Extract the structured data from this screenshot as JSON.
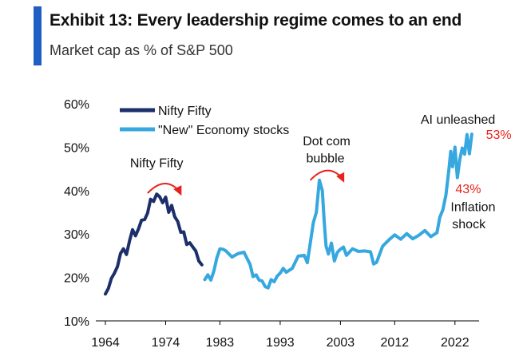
{
  "header": {
    "title": "Exhibit 13: Every leadership regime comes to an end",
    "subtitle": "Market cap as % of S&P 500"
  },
  "colors": {
    "accent": "#1f5fc4",
    "nifty": "#1c2f6b",
    "new_economy": "#36a8df",
    "highlight": "#e8221b",
    "text": "#111111"
  },
  "chart_data": {
    "type": "line",
    "title": "Exhibit 13: Every leadership regime comes to an end",
    "subtitle": "Market cap as % of S&P 500",
    "xlabel": "",
    "ylabel": "",
    "xlim": [
      1964,
      2026
    ],
    "ylim": [
      10,
      60
    ],
    "x_ticks": [
      "1964",
      "1974",
      "1983",
      "1993",
      "2003",
      "2012",
      "2022"
    ],
    "x_tick_values": [
      1964,
      1974,
      1983,
      1993,
      2003,
      2012,
      2022
    ],
    "y_ticks": [
      "10%",
      "20%",
      "30%",
      "40%",
      "50%",
      "60%"
    ],
    "y_tick_values": [
      10,
      20,
      30,
      40,
      50,
      60
    ],
    "grid": false,
    "legend_position": "top-left",
    "series": [
      {
        "name": "Nifty Fifty",
        "x": [
          1964.0,
          1964.5,
          1965.0,
          1965.5,
          1966.0,
          1966.5,
          1967.0,
          1967.5,
          1968.0,
          1968.5,
          1969.0,
          1969.5,
          1970.0,
          1970.5,
          1971.0,
          1971.5,
          1972.0,
          1972.5,
          1973.0,
          1973.5,
          1974.0,
          1974.5,
          1975.0,
          1975.5,
          1976.0,
          1976.5,
          1977.0,
          1977.5,
          1978.0,
          1978.5,
          1979.0,
          1979.5,
          1980.0
        ],
        "values": [
          16.2,
          17.5,
          19.8,
          21.0,
          22.5,
          25.5,
          26.6,
          25.3,
          28.4,
          31.0,
          29.6,
          31.2,
          33.2,
          33.3,
          34.8,
          38.0,
          37.5,
          39.2,
          38.6,
          37.2,
          38.5,
          35.0,
          36.6,
          34.0,
          32.9,
          30.4,
          30.5,
          27.6,
          28.0,
          27.0,
          26.1,
          23.8,
          22.9
        ]
      },
      {
        "name": "\"New\" Economy stocks",
        "x": [
          1980.5,
          1981.0,
          1981.5,
          1982.0,
          1982.5,
          1983.0,
          1983.5,
          1984.0,
          1985.0,
          1986.0,
          1987.0,
          1988.0,
          1988.5,
          1989.0,
          1989.5,
          1990.0,
          1990.5,
          1991.0,
          1991.5,
          1992.0,
          1992.5,
          1993.0,
          1993.5,
          1994.0,
          1995.0,
          1996.0,
          1997.0,
          1997.5,
          1998.0,
          1998.5,
          1999.0,
          1999.5,
          2000.0,
          2000.3,
          2000.6,
          2001.0,
          2001.5,
          2002.0,
          2002.5,
          2003.0,
          2003.5,
          2004.0,
          2005.0,
          2006.0,
          2007.0,
          2008.0,
          2008.5,
          2009.0,
          2010.0,
          2011.0,
          2012.0,
          2013.0,
          2014.0,
          2015.0,
          2016.0,
          2017.0,
          2018.0,
          2019.0,
          2019.5,
          2020.0,
          2020.5,
          2021.0,
          2021.3,
          2021.6,
          2022.0,
          2022.4,
          2022.8,
          2023.2,
          2023.6,
          2024.0,
          2024.4,
          2024.8
        ],
        "values": [
          19.5,
          20.6,
          19.4,
          21.5,
          24.5,
          26.6,
          26.5,
          26.1,
          24.7,
          25.5,
          25.8,
          23.0,
          20.2,
          20.6,
          19.4,
          19.2,
          17.9,
          17.6,
          19.5,
          19.0,
          20.3,
          21.0,
          22.1,
          21.2,
          22.1,
          24.9,
          25.1,
          23.4,
          27.9,
          32.6,
          35.0,
          42.4,
          40.0,
          33.0,
          27.3,
          25.4,
          27.9,
          23.8,
          25.8,
          26.5,
          27.0,
          25.1,
          26.6,
          26.0,
          26.1,
          25.9,
          23.1,
          23.5,
          27.2,
          28.6,
          29.8,
          28.8,
          30.1,
          28.9,
          29.7,
          30.8,
          29.4,
          30.3,
          33.9,
          35.6,
          39.0,
          45.0,
          49.0,
          45.5,
          50.0,
          43.0,
          47.1,
          49.8,
          48.4,
          52.9,
          48.5,
          53.0
        ]
      }
    ],
    "annotations": [
      {
        "text": "Nifty Fifty",
        "x": 1972.5,
        "y": 46.5,
        "color": "#111111"
      },
      {
        "text": "Dot com",
        "x": 2000.7,
        "y": 51.5,
        "color": "#111111"
      },
      {
        "text": "bubble",
        "x": 2000.5,
        "y": 47.6,
        "color": "#111111"
      },
      {
        "text": "AI unleashed",
        "x": 2022.5,
        "y": 56.5,
        "color": "#111111"
      },
      {
        "text": "53%",
        "x": 2028.2,
        "y": 53.0,
        "color": "#e8221b"
      },
      {
        "text": "43%",
        "x": 2024.2,
        "y": 40.5,
        "color": "#e8221b"
      },
      {
        "text": "Inflation",
        "x": 2025.0,
        "y": 36.4,
        "color": "#111111"
      },
      {
        "text": "shock",
        "x": 2024.3,
        "y": 32.4,
        "color": "#111111"
      }
    ],
    "arrows": [
      {
        "name": "nifty-fifty-arrow",
        "x_from": 1971.0,
        "x_to": 1976.5,
        "y": 40.5
      },
      {
        "name": "dotcom-arrow",
        "x_from": 1998.0,
        "x_to": 2003.5,
        "y": 43.5
      }
    ]
  }
}
